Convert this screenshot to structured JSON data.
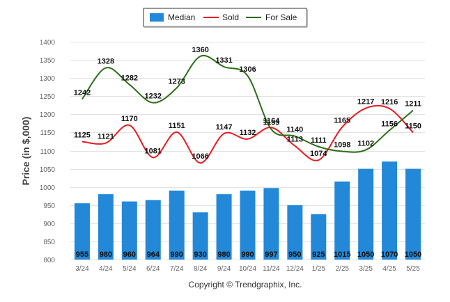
{
  "chart_data": {
    "type": "bar",
    "categories": [
      "3/24",
      "4/24",
      "5/24",
      "6/24",
      "7/24",
      "8/24",
      "9/24",
      "10/24",
      "11/24",
      "12/24",
      "1/25",
      "2/25",
      "3/25",
      "4/25",
      "5/25"
    ],
    "ylabel": "Price (in $,000)",
    "ylim": [
      800,
      1400
    ],
    "yticks": [
      800,
      850,
      900,
      950,
      1000,
      1050,
      1100,
      1150,
      1200,
      1250,
      1300,
      1350,
      1400
    ],
    "grid": true,
    "legend": "top-center",
    "series": [
      {
        "name": "Median",
        "type": "bar",
        "color": "#2388d8",
        "values": [
          955,
          980,
          960,
          964,
          990,
          930,
          980,
          990,
          997,
          950,
          925,
          1015,
          1050,
          1070,
          1050
        ]
      },
      {
        "name": "Sold",
        "type": "line",
        "color": "#e8191f",
        "values": [
          1125,
          1121,
          1170,
          1081,
          1151,
          1066,
          1147,
          1132,
          1164,
          1113,
          1074,
          1165,
          1217,
          1216,
          1150
        ]
      },
      {
        "name": "For Sale",
        "type": "line",
        "color": "#2a6e14",
        "values": [
          1242,
          1328,
          1282,
          1232,
          1273,
          1360,
          1331,
          1306,
          1159,
          1140,
          1111,
          1098,
          1102,
          1156,
          1211
        ]
      }
    ]
  },
  "footer": {
    "copyright": "Copyright © Trendgraphix, Inc."
  }
}
